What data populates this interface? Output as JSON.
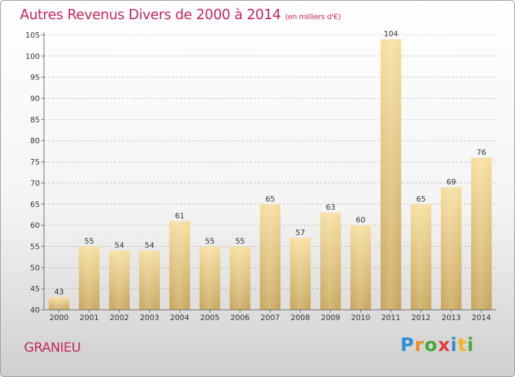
{
  "header": {
    "title": "Autres Revenus Divers de 2000 à 2014",
    "subtitle": "(en milliers d'€)"
  },
  "footer": {
    "place": "GRANIEU",
    "brand": [
      "P",
      "r",
      "o",
      "x",
      "i",
      "t",
      "i"
    ]
  },
  "colors": {
    "title": "#c4285c",
    "bar_light": "#f5dc9a",
    "bar_dark": "#c8a85a",
    "grid": "#9a9a9a"
  },
  "chart_data": {
    "type": "bar",
    "title": "Autres Revenus Divers de 2000 à 2014",
    "subtitle": "(en milliers d'€)",
    "categories": [
      "2000",
      "2001",
      "2002",
      "2003",
      "2004",
      "2005",
      "2006",
      "2007",
      "2008",
      "2009",
      "2010",
      "2011",
      "2012",
      "2013",
      "2014"
    ],
    "values": [
      43,
      55,
      54,
      54,
      61,
      55,
      55,
      65,
      57,
      63,
      60,
      104,
      65,
      69,
      76
    ],
    "ylim": [
      40,
      105
    ],
    "yticks": [
      40,
      45,
      50,
      55,
      60,
      65,
      70,
      75,
      80,
      85,
      90,
      95,
      100,
      105
    ],
    "grid": "horizontal dashed",
    "legend": "none"
  }
}
